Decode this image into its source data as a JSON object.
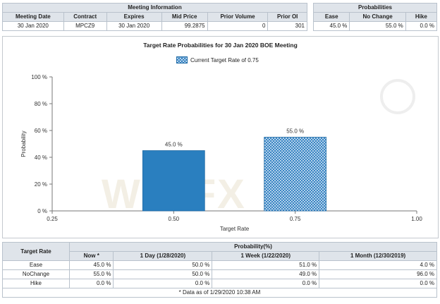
{
  "meeting": {
    "group_header": "Meeting Information",
    "columns": [
      "Meeting Date",
      "Contract",
      "Expires",
      "Mid Price",
      "Prior Volume",
      "Prior OI"
    ],
    "row": [
      "30 Jan 2020",
      "MPCZ9",
      "30 Jan 2020",
      "99.2875",
      "0",
      "301"
    ]
  },
  "probabilities": {
    "group_header": "Probabilities",
    "columns": [
      "Ease",
      "No Change",
      "Hike"
    ],
    "row": [
      "45.0 %",
      "55.0 %",
      "0.0 %"
    ]
  },
  "chart_data": {
    "type": "bar",
    "title": "Target Rate Probabilities for 30 Jan 2020 BOE Meeting",
    "legend": "Current Target Rate of 0.75",
    "xlabel": "Target Rate",
    "ylabel": "Probability",
    "x_ticks": [
      "0.25",
      "0.50",
      "0.75",
      "1.00"
    ],
    "y_ticks": [
      "0 %",
      "20 %",
      "40 %",
      "60 %",
      "80 %",
      "100 %"
    ],
    "xlim": [
      0.25,
      1.0
    ],
    "ylim": [
      0,
      100
    ],
    "categories": [
      "0.50",
      "0.75"
    ],
    "x": [
      0.5,
      0.75
    ],
    "values": [
      45.0,
      55.0
    ],
    "labels": [
      "45.0 %",
      "55.0 %"
    ],
    "colors": [
      "#2a7fbf",
      "#2a7bbf"
    ],
    "highlight_index": 1,
    "grid": false
  },
  "watermark": "WikiFX",
  "bottom": {
    "target_rate_header": "Target Rate",
    "group_header": "Probability(%)",
    "columns": [
      "Now *",
      "1 Day (1/28/2020)",
      "1 Week (1/22/2020)",
      "1 Month (12/30/2019)"
    ],
    "rows": [
      {
        "label": "Ease",
        "values": [
          "45.0 %",
          "50.0 %",
          "51.0 %",
          "4.0 %"
        ]
      },
      {
        "label": "NoChange",
        "values": [
          "55.0 %",
          "50.0 %",
          "49.0 %",
          "96.0 %"
        ]
      },
      {
        "label": "Hike",
        "values": [
          "0.0 %",
          "0.0 %",
          "0.0 %",
          "0.0 %"
        ]
      }
    ],
    "footnote": "* Data as of 1/29/2020 10:38 AM"
  }
}
